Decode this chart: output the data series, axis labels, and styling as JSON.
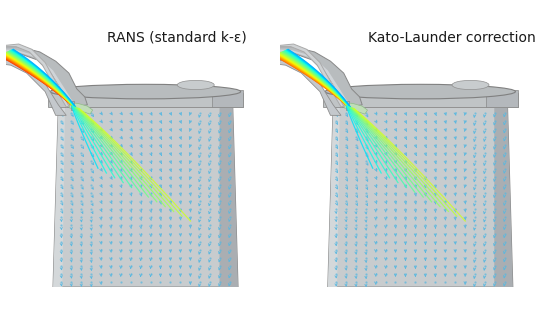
{
  "title_left": "RANS (standard k-ε)",
  "title_right": "Kato-Launder correction",
  "bg_color": "#ffffff",
  "cylinder_face": "#c8ccce",
  "cylinder_right": "#b0b4b8",
  "cylinder_left_edge": "#9aa0a4",
  "cylinder_top_rim": "#b0b4b8",
  "pipe_outer": "#b8bcc0",
  "pipe_inner": "#d0d4d8",
  "cone_color": "#c8dfc0",
  "blue_arrow": "#5ab8e0",
  "title_fontsize": 10,
  "figsize": [
    5.5,
    3.1
  ],
  "dpi": 100
}
